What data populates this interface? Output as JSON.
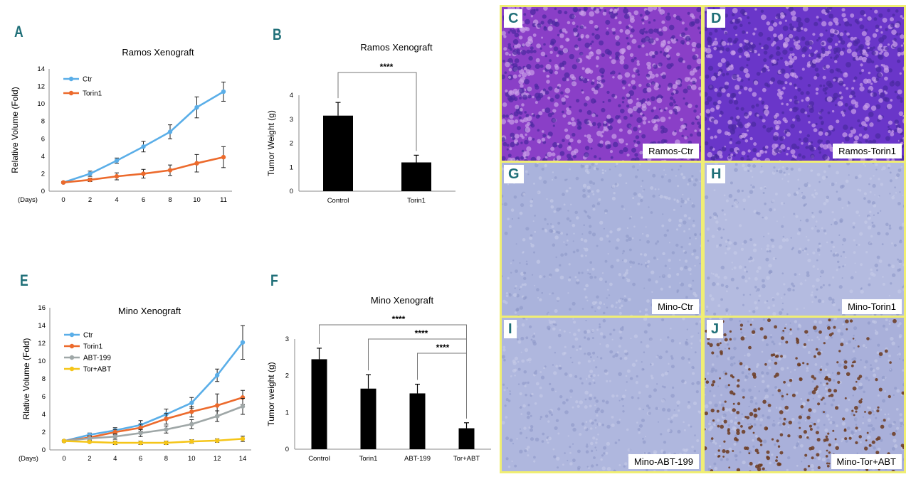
{
  "panels": {
    "A": "A",
    "B": "B",
    "E": "E",
    "F": "F"
  },
  "micrographs": [
    {
      "letter": "C",
      "label": "Ramos-Ctr",
      "stain": "he",
      "color": "#8a3fc7"
    },
    {
      "letter": "D",
      "label": "Ramos-Torin1",
      "stain": "he",
      "color": "#6a36c9"
    },
    {
      "letter": "G",
      "label": "Mino-Ctr",
      "stain": "ihc",
      "color": "#aab3dc"
    },
    {
      "letter": "H",
      "label": "Mino-Torin1",
      "stain": "ihc",
      "color": "#b4bbe0"
    },
    {
      "letter": "I",
      "label": "Mino-ABT-199",
      "stain": "ihc",
      "color": "#afb7de"
    },
    {
      "letter": "J",
      "label": "Mino-Tor+ABT",
      "stain": "ihc-dab",
      "color": "#a9b0da"
    }
  ],
  "chart_data": [
    {
      "id": "A",
      "type": "line",
      "title": "Ramos Xenograft",
      "ylabel": "Relative Volume (Fold)",
      "xlabel": "(Days)",
      "categories": [
        "0",
        "2",
        "4",
        "6",
        "8",
        "10",
        "11"
      ],
      "ylim": [
        0,
        14
      ],
      "yticks": [
        0,
        2,
        4,
        6,
        8,
        10,
        12,
        14
      ],
      "legend_position": "top-left",
      "series": [
        {
          "name": "Ctr",
          "color": "#5aaee8",
          "values": [
            1.0,
            2.0,
            3.5,
            5.1,
            6.8,
            9.6,
            11.4
          ],
          "errors": [
            0.1,
            0.3,
            0.3,
            0.6,
            0.8,
            1.2,
            1.1
          ]
        },
        {
          "name": "Torin1",
          "color": "#ec6a2c",
          "values": [
            1.0,
            1.3,
            1.7,
            2.0,
            2.4,
            3.2,
            3.9
          ],
          "errors": [
            0.1,
            0.2,
            0.4,
            0.5,
            0.6,
            1.0,
            1.2
          ]
        }
      ]
    },
    {
      "id": "B",
      "type": "bar",
      "title": "Ramos Xenograft",
      "ylabel": "Tumor Weight (g)",
      "categories": [
        "Control",
        "Torin1"
      ],
      "values": [
        3.15,
        1.2
      ],
      "errors": [
        0.55,
        0.3
      ],
      "ylim": [
        0,
        4
      ],
      "yticks": [
        0,
        1,
        2,
        3,
        4
      ],
      "significance": [
        {
          "from": 0,
          "to": 1,
          "label": "****"
        }
      ]
    },
    {
      "id": "E",
      "type": "line",
      "title": "Mino Xenograft",
      "ylabel": "Rlative Volume (Fold)",
      "xlabel": "(Days)",
      "categories": [
        "0",
        "2",
        "4",
        "6",
        "8",
        "10",
        "12",
        "14"
      ],
      "ylim": [
        0,
        16
      ],
      "yticks": [
        0,
        2,
        4,
        6,
        8,
        10,
        12,
        14,
        16
      ],
      "legend_position": "top-left",
      "series": [
        {
          "name": "Ctr",
          "color": "#5aaee8",
          "values": [
            1.0,
            1.7,
            2.2,
            2.8,
            4.0,
            5.3,
            8.4,
            12.1
          ],
          "errors": [
            0.1,
            0.2,
            0.3,
            0.5,
            0.6,
            0.6,
            0.7,
            1.9
          ]
        },
        {
          "name": "Torin1",
          "color": "#ec6a2c",
          "values": [
            1.0,
            1.4,
            2.0,
            2.5,
            3.5,
            4.3,
            5.0,
            5.9
          ],
          "errors": [
            0.1,
            0.2,
            0.3,
            0.4,
            0.6,
            0.6,
            1.3,
            0.8
          ]
        },
        {
          "name": "ABT-199",
          "color": "#9fa7a7",
          "values": [
            1.0,
            1.3,
            1.5,
            1.9,
            2.3,
            2.9,
            3.8,
            4.9
          ],
          "errors": [
            0.1,
            0.2,
            0.3,
            0.4,
            0.4,
            0.5,
            0.6,
            0.9
          ]
        },
        {
          "name": "Tor+ABT",
          "color": "#f5c518",
          "values": [
            1.0,
            0.9,
            0.8,
            0.8,
            0.8,
            0.95,
            1.05,
            1.25
          ],
          "errors": [
            0.1,
            0.1,
            0.2,
            0.2,
            0.2,
            0.2,
            0.2,
            0.3
          ]
        }
      ]
    },
    {
      "id": "F",
      "type": "bar",
      "title": "Mino Xenograft",
      "ylabel": "Tumor weight (g)",
      "categories": [
        "Control",
        "Torin1",
        "ABT-199",
        "Tor+ABT"
      ],
      "values": [
        2.45,
        1.65,
        1.52,
        0.57
      ],
      "errors": [
        0.3,
        0.38,
        0.25,
        0.15
      ],
      "ylim": [
        0,
        3
      ],
      "yticks": [
        0,
        1,
        2,
        3
      ],
      "significance": [
        {
          "from": 0,
          "to": 3,
          "label": "****"
        },
        {
          "from": 1,
          "to": 3,
          "label": "****"
        },
        {
          "from": 2,
          "to": 3,
          "label": "****"
        }
      ]
    }
  ]
}
